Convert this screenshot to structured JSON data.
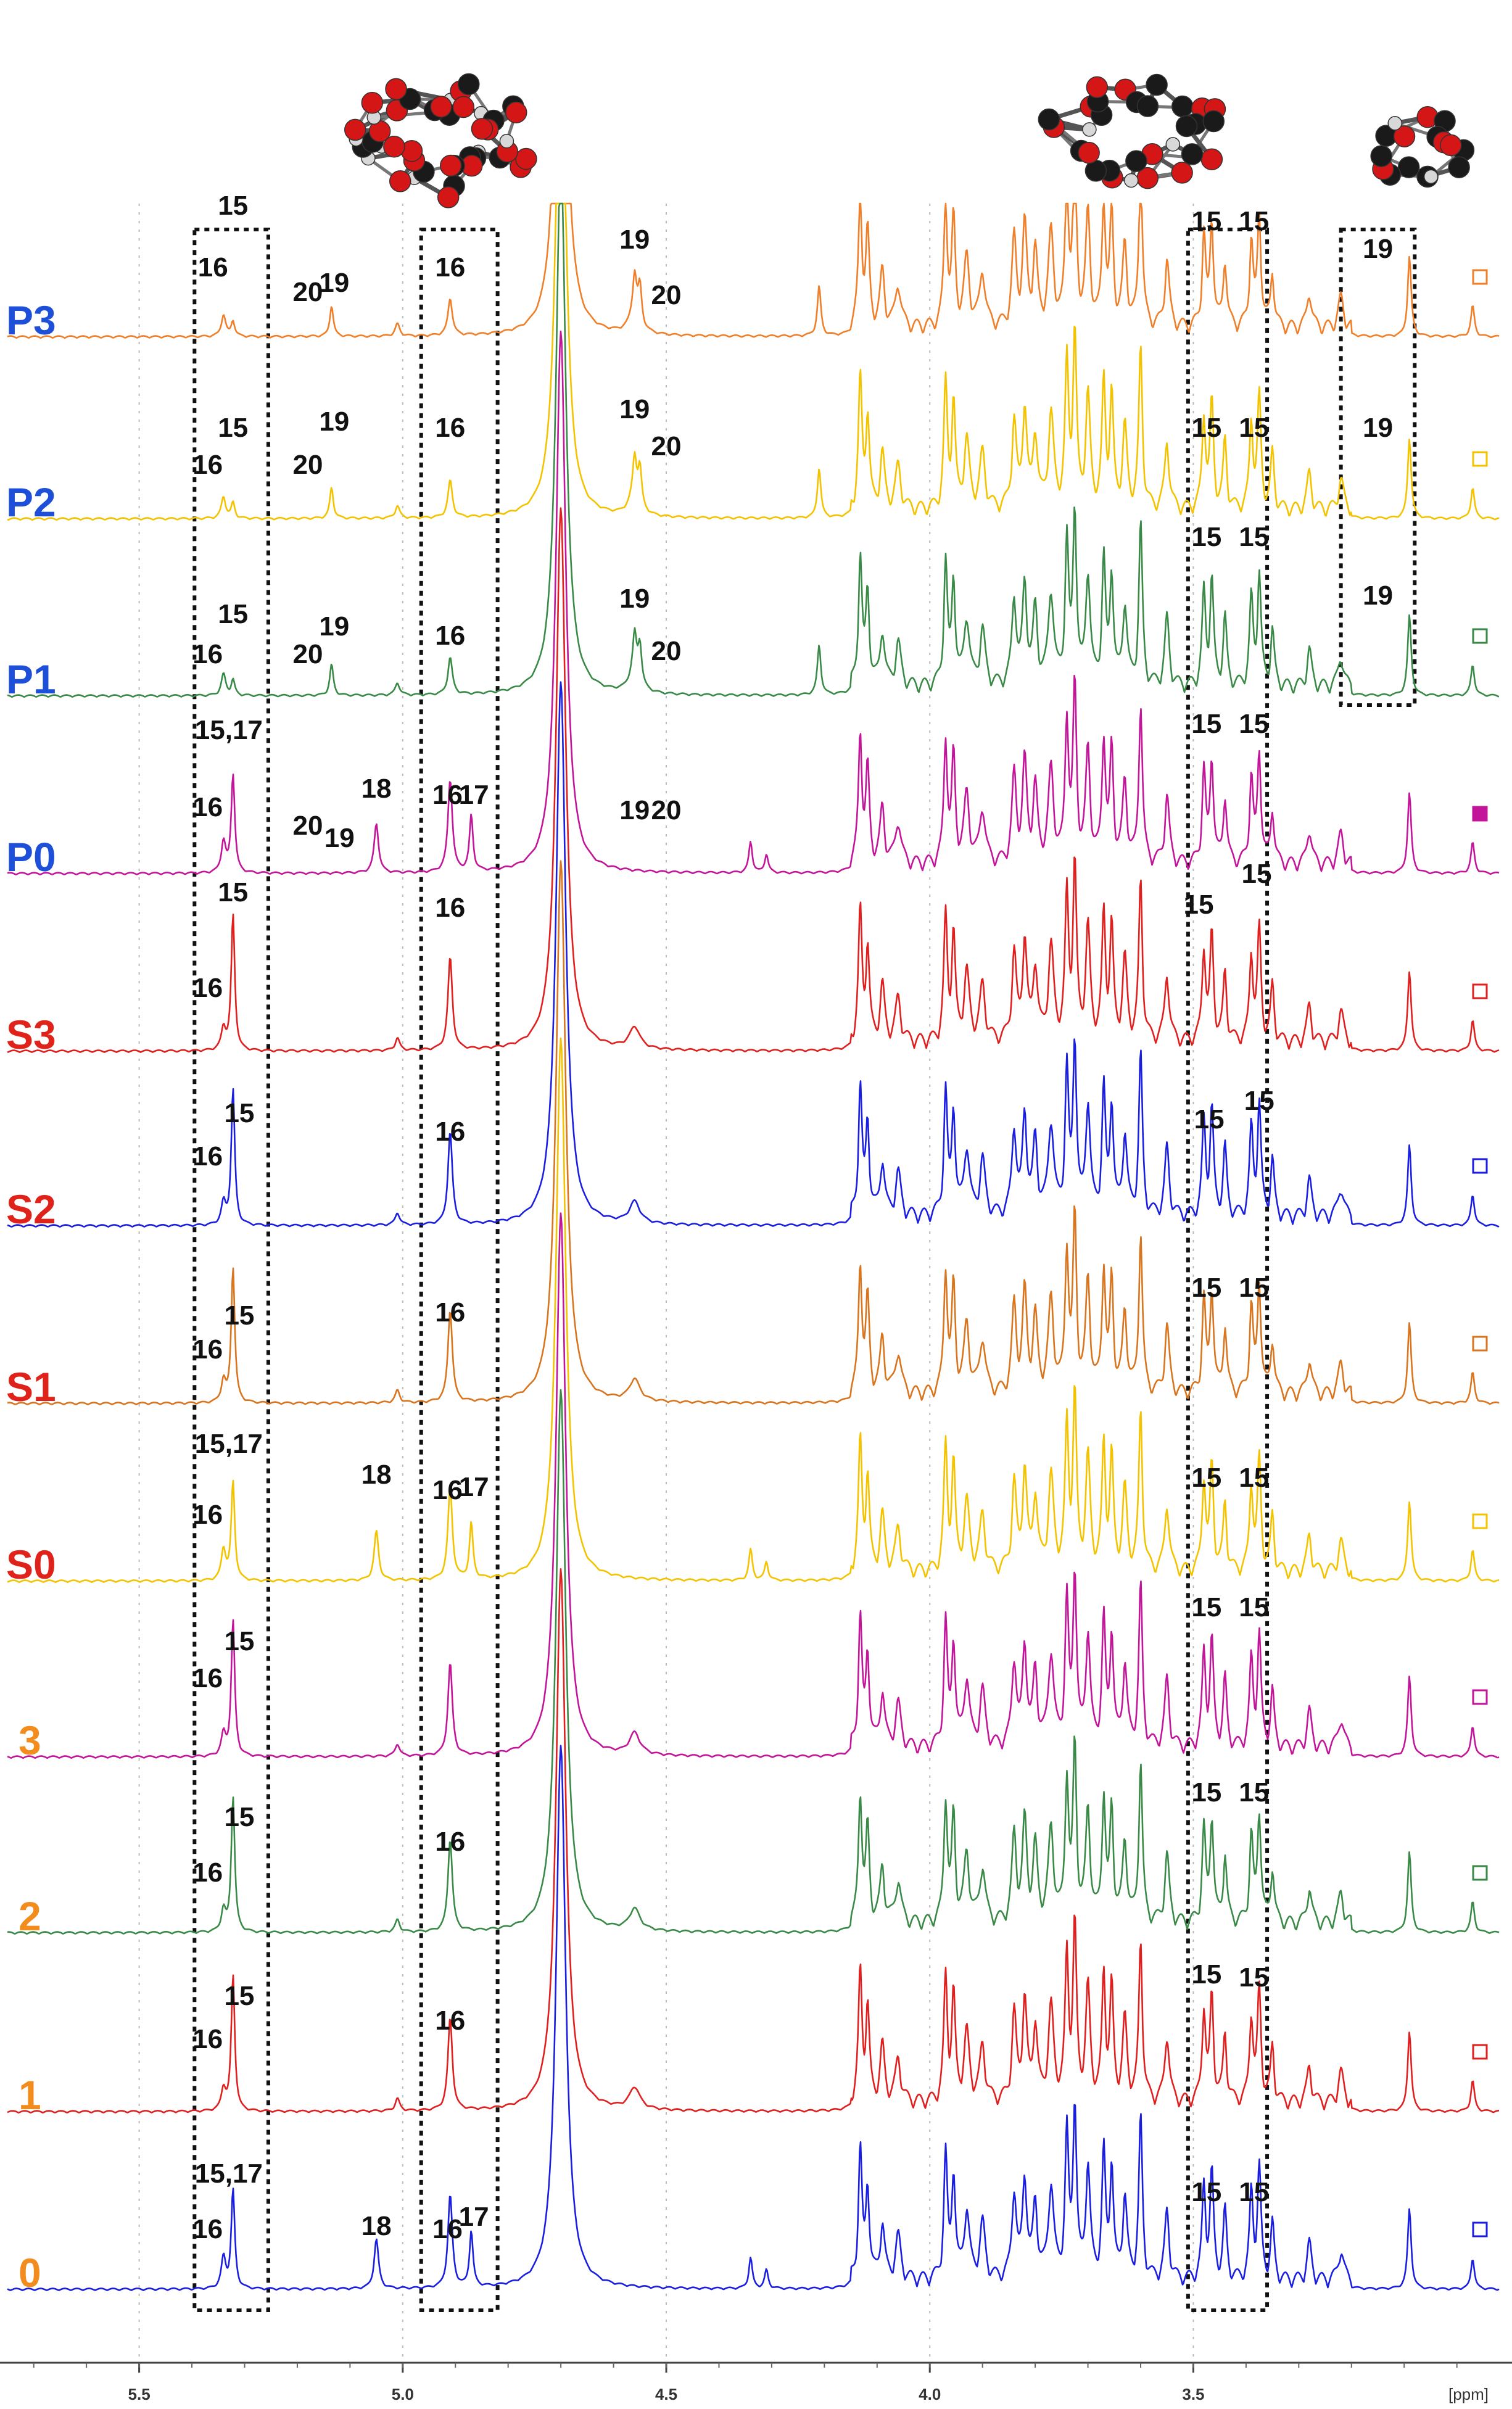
{
  "chart_data": {
    "type": "line",
    "xlabel": "[ppm]",
    "x_ticks": [
      {
        "value": 5.5,
        "label": "5.5"
      },
      {
        "value": 5.0,
        "label": "5.0"
      },
      {
        "value": 4.5,
        "label": "4.5"
      },
      {
        "value": 4.0,
        "label": "4.0"
      },
      {
        "value": 3.5,
        "label": "3.5"
      }
    ],
    "xlim": [
      5.75,
      2.92
    ],
    "x_reversed": true,
    "grid": true,
    "series": [
      {
        "name": "P3",
        "color": "#f07f2a",
        "label_color": "#1e4fd8"
      },
      {
        "name": "P2",
        "color": "#f4c300",
        "label_color": "#1e4fd8"
      },
      {
        "name": "P1",
        "color": "#3a8a47",
        "label_color": "#1e4fd8"
      },
      {
        "name": "P0",
        "color": "#c2159a",
        "label_color": "#1e4fd8"
      },
      {
        "name": "S3",
        "color": "#e01f1f",
        "label_color": "#e0231a"
      },
      {
        "name": "S2",
        "color": "#1a1ee0",
        "label_color": "#e0231a"
      },
      {
        "name": "S1",
        "color": "#d8751e",
        "label_color": "#e0231a"
      },
      {
        "name": "S0",
        "color": "#f4c300",
        "label_color": "#e0231a"
      },
      {
        "name": "3",
        "color": "#c2159a",
        "label_color": "#f28c1c"
      },
      {
        "name": "2",
        "color": "#3a8a47",
        "label_color": "#f28c1c"
      },
      {
        "name": "1",
        "color": "#e01f1f",
        "label_color": "#f28c1c"
      },
      {
        "name": "0",
        "color": "#1a1ee0",
        "label_color": "#f28c1c"
      }
    ],
    "peak_annotations": [
      {
        "trace": "P3",
        "label": "15",
        "x": 5.322,
        "level": 2
      },
      {
        "trace": "P3",
        "label": "16",
        "x": 5.36,
        "level": 1
      },
      {
        "trace": "P3",
        "label": "20",
        "x": 5.18,
        "level": 0.6
      },
      {
        "trace": "P3",
        "label": "19",
        "x": 5.13,
        "level": 0.75
      },
      {
        "trace": "P3",
        "label": "16",
        "x": 4.91,
        "level": 1
      },
      {
        "trace": "P3",
        "label": "19",
        "x": 4.56,
        "level": 1.45
      },
      {
        "trace": "P3",
        "label": "20",
        "x": 4.5,
        "level": 0.55
      },
      {
        "trace": "P3",
        "label": "15",
        "x": 3.475,
        "level": 1.75
      },
      {
        "trace": "P3",
        "label": "15",
        "x": 3.385,
        "level": 1.75
      },
      {
        "trace": "P3",
        "label": "19",
        "x": 3.15,
        "level": 1.3
      },
      {
        "trace": "P2",
        "label": "15",
        "x": 5.322,
        "level": 1.35
      },
      {
        "trace": "P2",
        "label": "16",
        "x": 5.37,
        "level": 0.75
      },
      {
        "trace": "P2",
        "label": "20",
        "x": 5.18,
        "level": 0.75
      },
      {
        "trace": "P2",
        "label": "19",
        "x": 5.13,
        "level": 1.45
      },
      {
        "trace": "P2",
        "label": "16",
        "x": 4.91,
        "level": 1.35
      },
      {
        "trace": "P2",
        "label": "19",
        "x": 4.56,
        "level": 1.65
      },
      {
        "trace": "P2",
        "label": "20",
        "x": 4.5,
        "level": 1.05
      },
      {
        "trace": "P2",
        "label": "15",
        "x": 3.475,
        "level": 1.35
      },
      {
        "trace": "P2",
        "label": "15",
        "x": 3.385,
        "level": 1.35
      },
      {
        "trace": "P2",
        "label": "19",
        "x": 3.15,
        "level": 1.35
      },
      {
        "trace": "P1",
        "label": "15",
        "x": 5.322,
        "level": 1.2
      },
      {
        "trace": "P1",
        "label": "16",
        "x": 5.37,
        "level": 0.55
      },
      {
        "trace": "P1",
        "label": "20",
        "x": 5.18,
        "level": 0.55
      },
      {
        "trace": "P1",
        "label": "19",
        "x": 5.13,
        "level": 1.0
      },
      {
        "trace": "P1",
        "label": "16",
        "x": 4.91,
        "level": 0.85
      },
      {
        "trace": "P1",
        "label": "19",
        "x": 4.56,
        "level": 1.45
      },
      {
        "trace": "P1",
        "label": "20",
        "x": 4.5,
        "level": 0.6
      },
      {
        "trace": "P1",
        "label": "15",
        "x": 3.475,
        "level": 2.45
      },
      {
        "trace": "P1",
        "label": "15",
        "x": 3.385,
        "level": 2.45
      },
      {
        "trace": "P1",
        "label": "19",
        "x": 3.15,
        "level": 1.5
      },
      {
        "trace": "P0",
        "label": "15,17",
        "x": 5.33,
        "level": 2.2
      },
      {
        "trace": "P0",
        "label": "16",
        "x": 5.37,
        "level": 0.95
      },
      {
        "trace": "P0",
        "label": "20",
        "x": 5.18,
        "level": 0.65
      },
      {
        "trace": "P0",
        "label": "19",
        "x": 5.12,
        "level": 0.45
      },
      {
        "trace": "P0",
        "label": "18",
        "x": 5.05,
        "level": 1.25
      },
      {
        "trace": "P0",
        "label": "16",
        "x": 4.915,
        "level": 1.15
      },
      {
        "trace": "P0",
        "label": "17",
        "x": 4.865,
        "level": 1.15
      },
      {
        "trace": "P0",
        "label": "19",
        "x": 4.56,
        "level": 0.9
      },
      {
        "trace": "P0",
        "label": "20",
        "x": 4.5,
        "level": 0.9
      },
      {
        "trace": "P0",
        "label": "15",
        "x": 3.475,
        "level": 2.3
      },
      {
        "trace": "P0",
        "label": "15",
        "x": 3.385,
        "level": 2.3
      },
      {
        "trace": "S3",
        "label": "15",
        "x": 5.322,
        "level": 2.45
      },
      {
        "trace": "S3",
        "label": "16",
        "x": 5.37,
        "level": 0.9
      },
      {
        "trace": "S3",
        "label": "16",
        "x": 4.91,
        "level": 2.2
      },
      {
        "trace": "S3",
        "label": "15",
        "x": 3.49,
        "level": 2.25
      },
      {
        "trace": "S3",
        "label": "15",
        "x": 3.38,
        "level": 2.75
      },
      {
        "trace": "S2",
        "label": "15",
        "x": 5.31,
        "level": 1.7
      },
      {
        "trace": "S2",
        "label": "16",
        "x": 5.37,
        "level": 1.0
      },
      {
        "trace": "S2",
        "label": "16",
        "x": 4.91,
        "level": 1.4
      },
      {
        "trace": "S2",
        "label": "15",
        "x": 3.47,
        "level": 1.6
      },
      {
        "trace": "S2",
        "label": "15",
        "x": 3.375,
        "level": 1.9
      },
      {
        "trace": "S1",
        "label": "15",
        "x": 5.31,
        "level": 1.3
      },
      {
        "trace": "S1",
        "label": "16",
        "x": 5.37,
        "level": 0.75
      },
      {
        "trace": "S1",
        "label": "16",
        "x": 4.91,
        "level": 1.35
      },
      {
        "trace": "S1",
        "label": "15",
        "x": 3.475,
        "level": 1.75
      },
      {
        "trace": "S1",
        "label": "15",
        "x": 3.385,
        "level": 1.75
      },
      {
        "trace": "S0",
        "label": "15,17",
        "x": 5.33,
        "level": 2.1
      },
      {
        "trace": "S0",
        "label": "16",
        "x": 5.37,
        "level": 0.95
      },
      {
        "trace": "S0",
        "label": "18",
        "x": 5.05,
        "level": 1.6
      },
      {
        "trace": "S0",
        "label": "16",
        "x": 4.915,
        "level": 1.35
      },
      {
        "trace": "S0",
        "label": "17",
        "x": 4.865,
        "level": 1.4
      },
      {
        "trace": "S0",
        "label": "15",
        "x": 3.475,
        "level": 1.55
      },
      {
        "trace": "S0",
        "label": "15",
        "x": 3.385,
        "level": 1.55
      },
      {
        "trace": "3",
        "label": "15",
        "x": 5.31,
        "level": 1.75
      },
      {
        "trace": "3",
        "label": "16",
        "x": 5.37,
        "level": 1.15
      },
      {
        "trace": "3",
        "label": "15",
        "x": 3.475,
        "level": 2.3
      },
      {
        "trace": "3",
        "label": "15",
        "x": 3.385,
        "level": 2.3
      },
      {
        "trace": "2",
        "label": "15",
        "x": 5.31,
        "level": 1.75
      },
      {
        "trace": "2",
        "label": "16",
        "x": 5.37,
        "level": 0.85
      },
      {
        "trace": "2",
        "label": "16",
        "x": 4.91,
        "level": 1.35
      },
      {
        "trace": "2",
        "label": "15",
        "x": 3.475,
        "level": 2.15
      },
      {
        "trace": "2",
        "label": "15",
        "x": 3.385,
        "level": 2.15
      },
      {
        "trace": "1",
        "label": "15",
        "x": 5.31,
        "level": 1.75
      },
      {
        "trace": "1",
        "label": "16",
        "x": 5.37,
        "level": 1.05
      },
      {
        "trace": "1",
        "label": "16",
        "x": 4.91,
        "level": 1.35
      },
      {
        "trace": "1",
        "label": "15",
        "x": 3.475,
        "level": 2.1
      },
      {
        "trace": "1",
        "label": "15",
        "x": 3.385,
        "level": 2.05
      },
      {
        "trace": "0",
        "label": "15,17",
        "x": 5.33,
        "level": 1.75
      },
      {
        "trace": "0",
        "label": "16",
        "x": 5.37,
        "level": 0.85
      },
      {
        "trace": "0",
        "label": "18",
        "x": 5.05,
        "level": 0.9
      },
      {
        "trace": "0",
        "label": "16",
        "x": 4.915,
        "level": 0.85
      },
      {
        "trace": "0",
        "label": "17",
        "x": 4.865,
        "level": 1.05
      },
      {
        "trace": "0",
        "label": "15",
        "x": 3.475,
        "level": 1.45
      },
      {
        "trace": "0",
        "label": "15",
        "x": 3.385,
        "level": 1.45
      }
    ],
    "highlight_regions": [
      {
        "x_from": 5.395,
        "x_to": 5.255,
        "traces": "all"
      },
      {
        "x_from": 4.965,
        "x_to": 4.82,
        "traces": "all"
      },
      {
        "x_from": 3.51,
        "x_to": 3.36,
        "traces": "all"
      },
      {
        "x_from": 3.22,
        "x_to": 3.08,
        "traces": "P3-P1"
      }
    ],
    "structure_images": [
      {
        "name": "large-oligosaccharide-molecule-icon",
        "position": "top-center"
      },
      {
        "name": "disaccharide-molecule-icon",
        "position": "top-right"
      },
      {
        "name": "monosaccharide-molecule-icon",
        "position": "top-far-right"
      }
    ]
  }
}
